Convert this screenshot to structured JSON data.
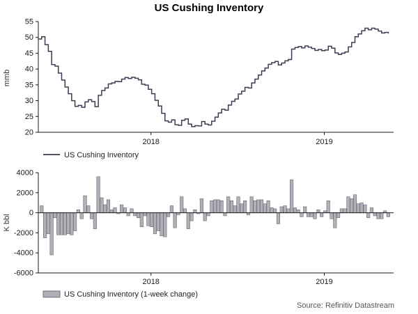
{
  "title": "US Cushing Inventory",
  "source": "Source: Refinitiv Datastream",
  "chart_data": [
    {
      "type": "line",
      "style": "step",
      "legend": "US Cushing Inventory",
      "ylabel": "mmb",
      "ylim": [
        20,
        55
      ],
      "yticks": [
        20,
        25,
        30,
        35,
        40,
        45,
        50,
        55
      ],
      "xticks": [
        2018,
        2019
      ],
      "x_start": 2017.35,
      "x_end": 2019.4,
      "x_unit": "year (weekly observations)",
      "line_color": "#3c3c52",
      "values_mmb": [
        49.5,
        50.2,
        47.7,
        45.6,
        41.4,
        40.9,
        38.7,
        36.5,
        34.3,
        32.2,
        30.0,
        28.2,
        28.5,
        27.9,
        29.6,
        30.3,
        29.7,
        28.1,
        31.7,
        33.2,
        34.0,
        35.3,
        35.6,
        36.1,
        36.0,
        36.8,
        37.3,
        37.0,
        37.4,
        37.1,
        36.6,
        35.2,
        34.9,
        33.6,
        32.2,
        30.1,
        28.3,
        26.0,
        23.6,
        23.2,
        23.9,
        22.4,
        22.2,
        23.8,
        24.2,
        22.6,
        21.8,
        22.1,
        22.0,
        23.4,
        22.6,
        22.3,
        23.5,
        24.8,
        26.1,
        27.3,
        27.0,
        28.6,
        29.8,
        30.5,
        32.1,
        33.0,
        34.2,
        34.0,
        35.6,
        36.8,
        38.1,
        39.4,
        40.3,
        41.5,
        42.0,
        42.4,
        41.3,
        41.9,
        42.6,
        43.0,
        46.3,
        46.8,
        47.1,
        46.7,
        47.3,
        46.9,
        46.5,
        45.9,
        46.2,
        45.8,
        46.0,
        47.2,
        46.6,
        45.1,
        44.6,
        45.0,
        45.4,
        47.0,
        48.4,
        50.2,
        51.1,
        52.1,
        52.9,
        52.4,
        52.9,
        52.6,
        52.0,
        51.4,
        51.6,
        51.2
      ]
    },
    {
      "type": "bar",
      "legend": "US Cushing Inventory (1-week change)",
      "ylabel": "K bbl",
      "ylim": [
        -6000,
        4000
      ],
      "yticks": [
        -6000,
        -4000,
        -2000,
        0,
        2000,
        4000
      ],
      "xticks": [
        2018,
        2019
      ],
      "x_start": 2017.35,
      "x_end": 2019.4,
      "bar_fill": "#b0b0b8",
      "bar_edge": "#55555e",
      "values_kbbl": [
        700,
        -2500,
        -2100,
        -4200,
        -500,
        -2200,
        -2200,
        -2200,
        -2100,
        -2200,
        -1800,
        300,
        -600,
        1700,
        700,
        -600,
        -1600,
        3600,
        1500,
        800,
        1300,
        300,
        500,
        -100,
        800,
        500,
        -300,
        400,
        -300,
        -500,
        -1400,
        -300,
        -1300,
        -1400,
        -2100,
        -1800,
        -2300,
        -2400,
        -400,
        700,
        -1500,
        -200,
        1600,
        400,
        -1600,
        -800,
        300,
        -100,
        1400,
        -800,
        -300,
        1200,
        1300,
        1300,
        1200,
        -300,
        1600,
        1200,
        700,
        1600,
        900,
        1200,
        -200,
        1600,
        1200,
        1300,
        1300,
        900,
        1200,
        500,
        400,
        -1100,
        600,
        700,
        400,
        3300,
        500,
        300,
        -400,
        600,
        -400,
        -400,
        -600,
        300,
        -400,
        200,
        1200,
        -600,
        -1500,
        -500,
        400,
        400,
        1600,
        1400,
        1800,
        900,
        1000,
        800,
        -500,
        500,
        -300,
        -600,
        -600,
        200,
        -400
      ]
    }
  ]
}
